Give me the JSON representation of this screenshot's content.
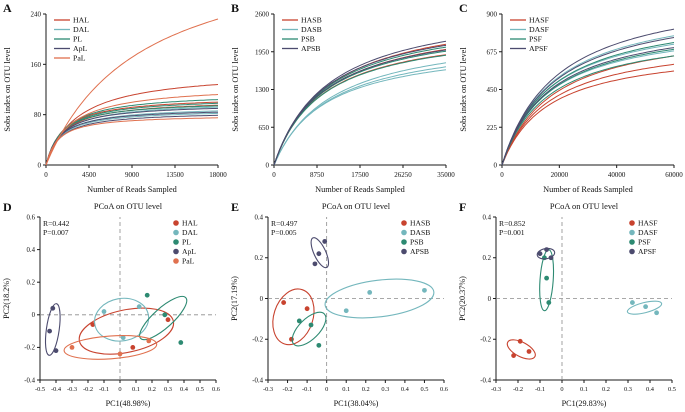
{
  "colors": {
    "red": "#c8432f",
    "teal": "#74b7bd",
    "green": "#2d8a72",
    "navy": "#4c4b6e",
    "salmon": "#e0714f",
    "axis": "#1a1a1a",
    "dash": "#8c8c8c",
    "text": "#111111"
  },
  "chart_data": [
    {
      "kind": "rarefaction",
      "type": "line",
      "panel": "A",
      "xlabel": "Number of Reads Sampled",
      "ylabel": "Sobs index on OTU level",
      "xlim": [
        0,
        18000
      ],
      "ylim": [
        0,
        240
      ],
      "xticks": [
        0,
        4500,
        9000,
        13500,
        18000
      ],
      "yticks": [
        0,
        80,
        160,
        240
      ],
      "legend": [
        {
          "label": "HAL",
          "color": "red"
        },
        {
          "label": "DAL",
          "color": "teal"
        },
        {
          "label": "PL",
          "color": "green"
        },
        {
          "label": "ApL",
          "color": "navy"
        },
        {
          "label": "PaL",
          "color": "salmon"
        }
      ],
      "series": [
        {
          "color": "red",
          "end": 128,
          "curve": 0.18
        },
        {
          "color": "red",
          "end": 100,
          "curve": 0.1
        },
        {
          "color": "red",
          "end": 95,
          "curve": 0.1
        },
        {
          "color": "teal",
          "end": 92,
          "curve": 0.1
        },
        {
          "color": "teal",
          "end": 86,
          "curve": 0.09
        },
        {
          "color": "teal",
          "end": 82,
          "curve": 0.08
        },
        {
          "color": "green",
          "end": 104,
          "curve": 0.11
        },
        {
          "color": "green",
          "end": 98,
          "curve": 0.1
        },
        {
          "color": "green",
          "end": 94,
          "curve": 0.09
        },
        {
          "color": "navy",
          "end": 90,
          "curve": 0.09
        },
        {
          "color": "navy",
          "end": 84,
          "curve": 0.08
        },
        {
          "color": "navy",
          "end": 79,
          "curve": 0.08
        },
        {
          "color": "salmon",
          "end": 232,
          "curve": 0.55
        },
        {
          "color": "salmon",
          "end": 112,
          "curve": 0.14
        },
        {
          "color": "salmon",
          "end": 75,
          "curve": 0.07
        }
      ]
    },
    {
      "kind": "rarefaction",
      "type": "line",
      "panel": "B",
      "xlabel": "Number of Reads Sampled",
      "ylabel": "Sobs index on OTU level",
      "xlim": [
        0,
        35000
      ],
      "ylim": [
        0,
        2600
      ],
      "xticks": [
        0,
        8750,
        17500,
        26250,
        35000
      ],
      "yticks": [
        0,
        650,
        1300,
        1950,
        2600
      ],
      "legend": [
        {
          "label": "HASB",
          "color": "red"
        },
        {
          "label": "DASB",
          "color": "teal"
        },
        {
          "label": "PSB",
          "color": "green"
        },
        {
          "label": "APSB",
          "color": "navy"
        }
      ],
      "series": [
        {
          "color": "red",
          "end": 2080,
          "curve": 0.32
        },
        {
          "color": "red",
          "end": 1990,
          "curve": 0.3
        },
        {
          "color": "red",
          "end": 1900,
          "curve": 0.28
        },
        {
          "color": "teal",
          "end": 1760,
          "curve": 0.34
        },
        {
          "color": "teal",
          "end": 1690,
          "curve": 0.32
        },
        {
          "color": "teal",
          "end": 1640,
          "curve": 0.3
        },
        {
          "color": "green",
          "end": 2030,
          "curve": 0.3
        },
        {
          "color": "green",
          "end": 1960,
          "curve": 0.29
        },
        {
          "color": "green",
          "end": 1890,
          "curve": 0.28
        },
        {
          "color": "navy",
          "end": 2130,
          "curve": 0.32
        },
        {
          "color": "navy",
          "end": 2060,
          "curve": 0.3
        },
        {
          "color": "navy",
          "end": 1980,
          "curve": 0.29
        }
      ]
    },
    {
      "kind": "rarefaction",
      "type": "line",
      "panel": "C",
      "xlabel": "Number of Reads Sampled",
      "ylabel": "Sobs index on OTU level",
      "xlim": [
        0,
        60000
      ],
      "ylim": [
        0,
        900
      ],
      "xticks": [
        0,
        20000,
        40000,
        60000
      ],
      "yticks": [
        0,
        225,
        450,
        675,
        900
      ],
      "legend": [
        {
          "label": "HASF",
          "color": "red"
        },
        {
          "label": "DASF",
          "color": "teal"
        },
        {
          "label": "PSF",
          "color": "green"
        },
        {
          "label": "APSF",
          "color": "navy"
        }
      ],
      "series": [
        {
          "color": "red",
          "end": 650,
          "curve": 0.3
        },
        {
          "color": "red",
          "end": 600,
          "curve": 0.28
        },
        {
          "color": "red",
          "end": 560,
          "curve": 0.27
        },
        {
          "color": "teal",
          "end": 770,
          "curve": 0.3
        },
        {
          "color": "teal",
          "end": 720,
          "curve": 0.28
        },
        {
          "color": "teal",
          "end": 680,
          "curve": 0.27
        },
        {
          "color": "green",
          "end": 730,
          "curve": 0.29
        },
        {
          "color": "green",
          "end": 690,
          "curve": 0.28
        },
        {
          "color": "green",
          "end": 650,
          "curve": 0.27
        },
        {
          "color": "navy",
          "end": 810,
          "curve": 0.32
        },
        {
          "color": "navy",
          "end": 760,
          "curve": 0.3
        },
        {
          "color": "navy",
          "end": 700,
          "curve": 0.28
        }
      ]
    },
    {
      "kind": "pcoa",
      "type": "scatter",
      "panel": "D",
      "title": "PCoA on OTU level",
      "stats": {
        "r": "R=0.442",
        "p": "P=0.007"
      },
      "xlabel": "PC1(48.98%)",
      "ylabel": "PC2(18.2%)",
      "xlim": [
        -0.5,
        0.6
      ],
      "ylim": [
        -0.4,
        0.6
      ],
      "xticks": [
        -0.5,
        -0.4,
        -0.3,
        -0.2,
        -0.1,
        0,
        0.1,
        0.2,
        0.3,
        0.4,
        0.5,
        0.6
      ],
      "yticks": [
        -0.4,
        -0.2,
        0,
        0.2,
        0.4,
        0.6
      ],
      "groups": [
        {
          "label": "HAL",
          "color": "red",
          "points": [
            [
              -0.17,
              -0.06
            ],
            [
              0.08,
              -0.2
            ],
            [
              0.3,
              -0.03
            ]
          ],
          "ellipse": {
            "c": [
              0.04,
              -0.1
            ],
            "rx": 0.3,
            "ry": 0.13,
            "angle": -12
          }
        },
        {
          "label": "DAL",
          "color": "teal",
          "points": [
            [
              -0.1,
              0.02
            ],
            [
              0.02,
              -0.14
            ],
            [
              0.12,
              0.05
            ]
          ],
          "ellipse": {
            "c": [
              0.01,
              -0.03
            ],
            "rx": 0.17,
            "ry": 0.13,
            "angle": -10
          }
        },
        {
          "label": "PL",
          "color": "green",
          "points": [
            [
              0.17,
              0.12
            ],
            [
              0.28,
              0.0
            ],
            [
              0.38,
              -0.17
            ]
          ],
          "ellipse": {
            "c": [
              0.27,
              -0.02
            ],
            "rx": 0.19,
            "ry": 0.06,
            "angle": -42
          }
        },
        {
          "label": "ApL",
          "color": "navy",
          "points": [
            [
              -0.42,
              0.04
            ],
            [
              -0.44,
              -0.1
            ],
            [
              -0.4,
              -0.22
            ]
          ],
          "ellipse": {
            "c": [
              -0.42,
              -0.09
            ],
            "rx": 0.04,
            "ry": 0.16,
            "angle": 8
          }
        },
        {
          "label": "PaL",
          "color": "salmon",
          "points": [
            [
              -0.3,
              -0.2
            ],
            [
              0.0,
              -0.24
            ],
            [
              0.18,
              -0.16
            ]
          ],
          "ellipse": {
            "c": [
              -0.06,
              -0.2
            ],
            "rx": 0.29,
            "ry": 0.07,
            "angle": -4
          }
        }
      ]
    },
    {
      "kind": "pcoa",
      "type": "scatter",
      "panel": "E",
      "title": "PCoA on OTU level",
      "stats": {
        "r": "R=0.497",
        "p": "P=0.005"
      },
      "xlabel": "PC1(38.04%)",
      "ylabel": "PC2(17.19%)",
      "xlim": [
        -0.3,
        0.6
      ],
      "ylim": [
        -0.4,
        0.4
      ],
      "xticks": [
        -0.3,
        -0.2,
        -0.1,
        0,
        0.1,
        0.2,
        0.3,
        0.4,
        0.5,
        0.6
      ],
      "yticks": [
        -0.4,
        -0.2,
        0,
        0.2,
        0.4
      ],
      "groups": [
        {
          "label": "HASB",
          "color": "red",
          "points": [
            [
              -0.22,
              -0.02
            ],
            [
              -0.18,
              -0.2
            ],
            [
              -0.1,
              -0.05
            ]
          ],
          "ellipse": {
            "c": [
              -0.17,
              -0.09
            ],
            "rx": 0.1,
            "ry": 0.14,
            "angle": 18
          }
        },
        {
          "label": "DASB",
          "color": "teal",
          "points": [
            [
              0.1,
              -0.06
            ],
            [
              0.22,
              0.03
            ],
            [
              0.5,
              0.04
            ]
          ],
          "ellipse": {
            "c": [
              0.27,
              0.0
            ],
            "rx": 0.28,
            "ry": 0.09,
            "angle": -7
          }
        },
        {
          "label": "PSB",
          "color": "green",
          "points": [
            [
              -0.14,
              -0.11
            ],
            [
              -0.08,
              -0.13
            ],
            [
              -0.04,
              -0.23
            ]
          ],
          "ellipse": {
            "c": [
              -0.09,
              -0.15
            ],
            "rx": 0.11,
            "ry": 0.05,
            "angle": -45
          }
        },
        {
          "label": "APSB",
          "color": "navy",
          "points": [
            [
              -0.06,
              0.17
            ],
            [
              -0.04,
              0.22
            ],
            [
              -0.01,
              0.28
            ]
          ],
          "ellipse": {
            "c": [
              -0.035,
              0.225
            ],
            "rx": 0.03,
            "ry": 0.08,
            "angle": -25
          }
        }
      ]
    },
    {
      "kind": "pcoa",
      "type": "scatter",
      "panel": "F",
      "title": "PCoA on OTU level",
      "stats": {
        "r": "R=0.852",
        "p": "P=0.001"
      },
      "xlabel": "PC1(29.83%)",
      "ylabel": "PC2(20.37%)",
      "xlim": [
        -0.3,
        0.5
      ],
      "ylim": [
        -0.4,
        0.4
      ],
      "xticks": [
        -0.3,
        -0.2,
        -0.1,
        0,
        0.1,
        0.2,
        0.3,
        0.4,
        0.5
      ],
      "yticks": [
        -0.4,
        -0.2,
        0,
        0.2,
        0.4
      ],
      "groups": [
        {
          "label": "HASF",
          "color": "red",
          "points": [
            [
              -0.22,
              -0.28
            ],
            [
              -0.19,
              -0.21
            ],
            [
              -0.15,
              -0.26
            ]
          ],
          "ellipse": {
            "c": [
              -0.185,
              -0.25
            ],
            "rx": 0.07,
            "ry": 0.035,
            "angle": 28
          }
        },
        {
          "label": "DASF",
          "color": "teal",
          "points": [
            [
              0.32,
              -0.02
            ],
            [
              0.38,
              -0.04
            ],
            [
              0.43,
              -0.07
            ]
          ],
          "ellipse": {
            "c": [
              0.375,
              -0.045
            ],
            "rx": 0.08,
            "ry": 0.025,
            "angle": -14
          }
        },
        {
          "label": "PSF",
          "color": "green",
          "points": [
            [
              -0.08,
              0.2
            ],
            [
              -0.07,
              0.1
            ],
            [
              -0.06,
              -0.02
            ]
          ],
          "ellipse": {
            "c": [
              -0.07,
              0.09
            ],
            "rx": 0.03,
            "ry": 0.15,
            "angle": 4
          }
        },
        {
          "label": "APSF",
          "color": "navy",
          "points": [
            [
              -0.1,
              0.22
            ],
            [
              -0.07,
              0.24
            ],
            [
              -0.05,
              0.2
            ]
          ],
          "ellipse": {
            "c": [
              -0.073,
              0.22
            ],
            "rx": 0.04,
            "ry": 0.025,
            "angle": -10
          }
        }
      ]
    }
  ]
}
